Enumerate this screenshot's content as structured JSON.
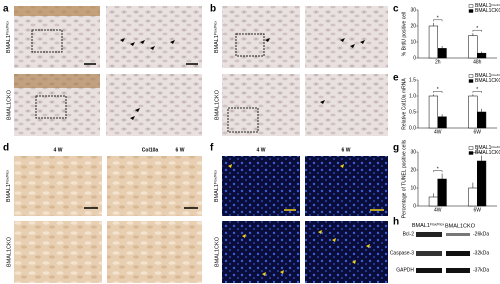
{
  "panel_labels": [
    "a",
    "b",
    "c",
    "d",
    "e",
    "f",
    "g",
    "h"
  ],
  "genotype_flox": {
    "base": "BMAL1",
    "sup": "Flox/Flox"
  },
  "genotype_cko": "BMAL1CKO",
  "d": {
    "headers": [
      "4 W",
      "Col10a",
      "6 W"
    ]
  },
  "f": {
    "headers": [
      "4 W",
      "6 W"
    ]
  },
  "chart_data": [
    {
      "type": "bar",
      "ylabel": "% BrdU positive cell",
      "categories": [
        "2h",
        "48h"
      ],
      "series": [
        {
          "name": "BMAL1",
          "superscript": "Flox/Flox",
          "color": "#ffffff",
          "values": [
            20,
            14
          ],
          "errors": [
            2,
            1.5
          ]
        },
        {
          "name": "BMAL1CKO",
          "color": "#000000",
          "values": [
            6,
            3
          ],
          "errors": [
            1.5,
            1
          ]
        }
      ],
      "annotations": [
        "*",
        "*"
      ],
      "ylim": [
        0,
        30
      ],
      "yticks": [
        0,
        10,
        20,
        30
      ]
    },
    {
      "type": "bar",
      "ylabel": "Relative Col10a mRNA",
      "categories": [
        "4W",
        "6W"
      ],
      "series": [
        {
          "name": "BMAL1",
          "superscript": "Flox/Flox",
          "color": "#ffffff",
          "values": [
            1,
            1
          ],
          "errors": [
            0.05,
            0.05
          ]
        },
        {
          "name": "BMAL1CKO",
          "color": "#000000",
          "values": [
            0.35,
            0.5
          ],
          "errors": [
            0.08,
            0.1
          ]
        }
      ],
      "annotations": [
        "*",
        "*"
      ],
      "ylim": [
        0,
        1.5
      ],
      "yticks": [
        {
          "value": 0,
          "label": "0.0"
        },
        0.5,
        {
          "value": 1,
          "label": "1.0"
        },
        1.5
      ]
    },
    {
      "type": "bar",
      "ylabel": "Percentage of TUNEL positive cells",
      "categories": [
        "4W",
        "6W"
      ],
      "series": [
        {
          "name": "BMAL1",
          "superscript": "Flox/Flox",
          "color": "#ffffff",
          "values": [
            5,
            10
          ],
          "errors": [
            2,
            3
          ]
        },
        {
          "name": "BMAL1CKO",
          "color": "#000000",
          "values": [
            15,
            25
          ],
          "errors": [
            3,
            3
          ]
        }
      ],
      "annotations": [
        "*",
        "*"
      ],
      "ylim": [
        0,
        30
      ],
      "yticks": [
        0,
        10,
        20,
        30
      ]
    }
  ],
  "h": {
    "rows": [
      {
        "protein": "Bcl-2",
        "size": "-26kDa"
      },
      {
        "protein": "Caspase-3",
        "size": "-32kDa"
      },
      {
        "protein": "GAPDH",
        "size": "-37kDa"
      }
    ]
  }
}
